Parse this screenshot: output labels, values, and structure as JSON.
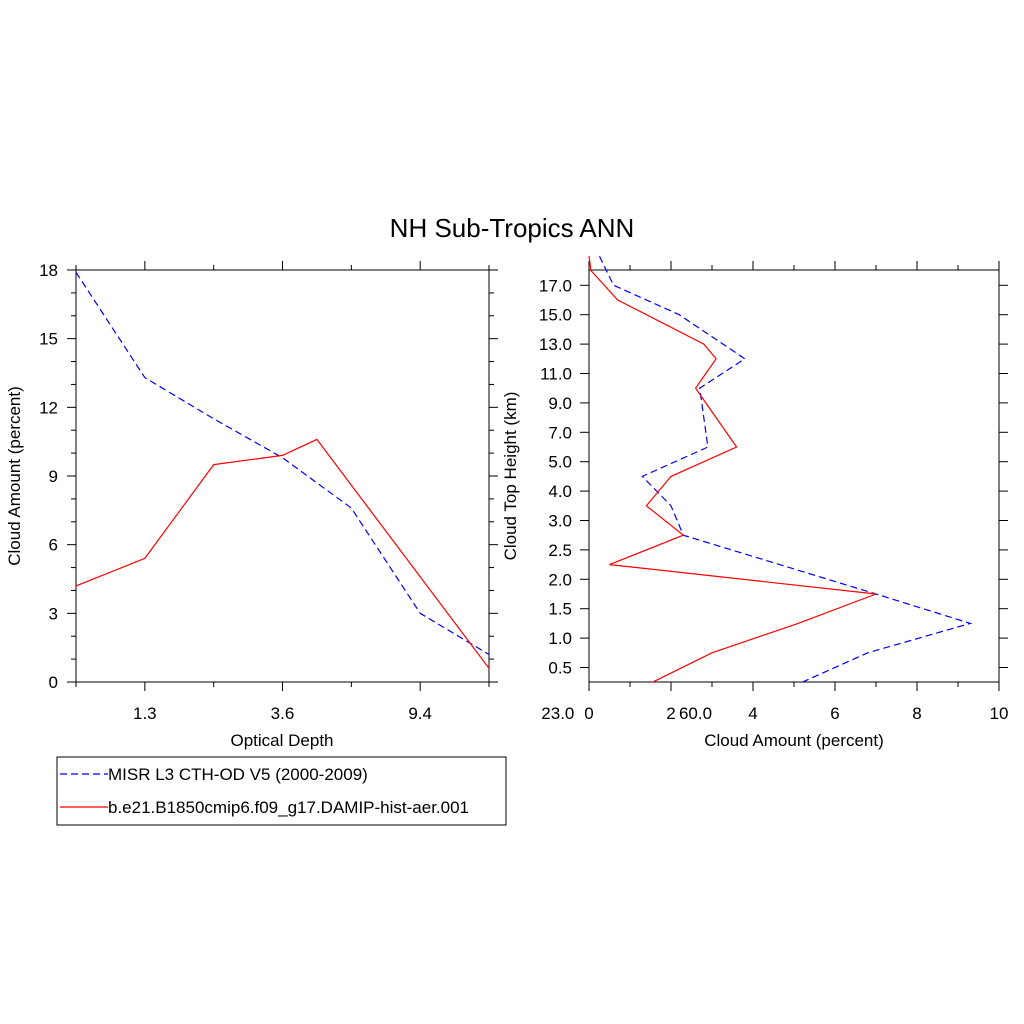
{
  "title": "NH Sub-Tropics ANN",
  "colors": {
    "obs": "#0000ff",
    "model": "#ff0000",
    "axis": "#000000"
  },
  "legend": {
    "entries": [
      {
        "label": "MISR L3 CTH-OD V5 (2000-2009)",
        "color": "#0000ff",
        "dash": true
      },
      {
        "label": "b.e21.B1850cmip6.f09_g17.DAMIP-hist-aer.001",
        "color": "#ff0000",
        "dash": false
      }
    ]
  },
  "chart_data": [
    {
      "type": "line",
      "xlabel": "Optical Depth",
      "ylabel": "Cloud Amount (percent)",
      "x_categories": [
        "1.3",
        "3.6",
        "9.4",
        "23.0",
        "60.0"
      ],
      "ylim": [
        0,
        18
      ],
      "yticks": [
        0,
        3,
        6,
        9,
        12,
        15,
        18
      ],
      "series": [
        {
          "name": "MISR L3 CTH-OD V5 (2000-2009)",
          "color": "#0000ff",
          "dash": true,
          "points": [
            [
              0,
              17.9
            ],
            [
              1,
              13.3
            ],
            [
              2,
              11.5
            ],
            [
              3,
              9.8
            ],
            [
              4,
              7.6
            ],
            [
              5,
              3.0
            ],
            [
              6,
              1.2
            ]
          ]
        },
        {
          "name": "b.e21.B1850cmip6.f09_g17.DAMIP-hist-aer.001",
          "color": "#ff0000",
          "dash": false,
          "points": [
            [
              0,
              4.2
            ],
            [
              1,
              5.4
            ],
            [
              2,
              9.5
            ],
            [
              3,
              9.9
            ],
            [
              3.5,
              10.6
            ],
            [
              6,
              0.6
            ]
          ]
        }
      ]
    },
    {
      "type": "line",
      "xlabel": "Cloud Amount (percent)",
      "ylabel": "Cloud Top Height (km)",
      "xlim": [
        0,
        10
      ],
      "xticks": [
        0,
        2,
        4,
        6,
        8,
        10
      ],
      "ytick_labels": [
        "0.5",
        "1.0",
        "1.5",
        "2.0",
        "2.5",
        "3.0",
        "4.0",
        "5.0",
        "7.0",
        "9.0",
        "11.0",
        "13.0",
        "15.0",
        "17.0"
      ],
      "series": [
        {
          "name": "MISR L3 CTH-OD V5 (2000-2009)",
          "color": "#0000ff",
          "dash": true,
          "points": [
            [
              5.2,
              -0.5
            ],
            [
              6.8,
              0.5
            ],
            [
              9.3,
              1.5
            ],
            [
              7.0,
              2.5
            ],
            [
              2.3,
              4.5
            ],
            [
              2.0,
              5.5
            ],
            [
              1.3,
              6.5
            ],
            [
              2.9,
              7.5
            ],
            [
              2.7,
              9.5
            ],
            [
              3.8,
              10.5
            ],
            [
              2.2,
              12.0
            ],
            [
              0.6,
              13.0
            ],
            [
              0.25,
              14.0
            ]
          ]
        },
        {
          "name": "b.e21.B1850cmip6.f09_g17.DAMIP-hist-aer.001",
          "color": "#ff0000",
          "dash": false,
          "points": [
            [
              1.55,
              -0.5
            ],
            [
              3.0,
              0.5
            ],
            [
              5.1,
              1.5
            ],
            [
              7.0,
              2.5
            ],
            [
              0.5,
              3.5
            ],
            [
              2.3,
              4.5
            ],
            [
              1.4,
              5.5
            ],
            [
              2.0,
              6.5
            ],
            [
              3.6,
              7.5
            ],
            [
              2.6,
              9.5
            ],
            [
              3.1,
              10.5
            ],
            [
              2.8,
              11.0
            ],
            [
              0.7,
              12.5
            ],
            [
              0.05,
              13.5
            ],
            [
              0.0,
              14.0
            ]
          ]
        }
      ]
    }
  ]
}
